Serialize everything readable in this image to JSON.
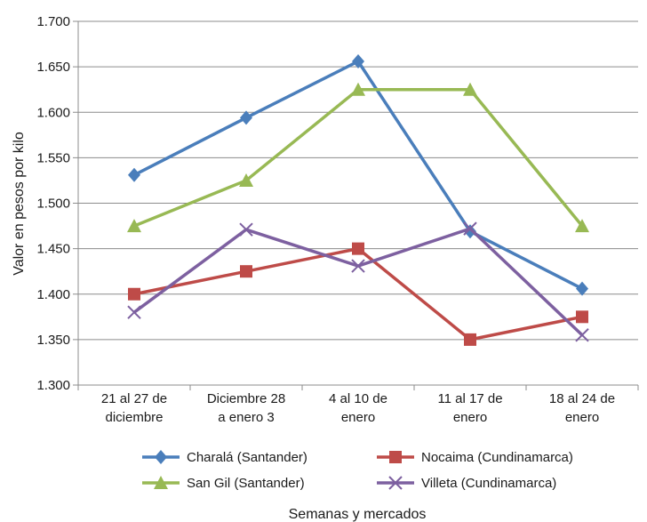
{
  "chart_data": {
    "type": "line",
    "title": "",
    "xlabel": "Semanas y mercados",
    "ylabel": "Valor en pesos por kilo",
    "ylim": [
      1300,
      1700
    ],
    "yticks": [
      1300,
      1350,
      1400,
      1450,
      1500,
      1550,
      1600,
      1650,
      1700
    ],
    "ytick_labels": [
      "1.300",
      "1.350",
      "1.400",
      "1.450",
      "1.500",
      "1.550",
      "1.600",
      "1.650",
      "1.700"
    ],
    "categories": [
      [
        "21 al 27 de",
        "diciembre"
      ],
      [
        "Diciembre 28",
        "a enero 3"
      ],
      [
        "4 al 10 de",
        "enero"
      ],
      [
        "11 al 17 de",
        "enero"
      ],
      [
        "18 al 24 de",
        "enero"
      ]
    ],
    "grid": true,
    "legend_position": "bottom",
    "series": [
      {
        "name": "Charalá (Santander)",
        "values": [
          1531,
          1594,
          1656,
          1469,
          1406
        ],
        "color": "#4a7ebb",
        "marker": "diamond"
      },
      {
        "name": "Nocaima (Cundinamarca)",
        "values": [
          1400,
          1425,
          1450,
          1350,
          1375
        ],
        "color": "#be4b48",
        "marker": "square"
      },
      {
        "name": "San Gil (Santander)",
        "values": [
          1475,
          1525,
          1625,
          1625,
          1475
        ],
        "color": "#98b954",
        "marker": "triangle"
      },
      {
        "name": "Villeta (Cundinamarca)",
        "values": [
          1380,
          1471,
          1431,
          1472,
          1355
        ],
        "color": "#7d60a0",
        "marker": "x"
      }
    ]
  }
}
